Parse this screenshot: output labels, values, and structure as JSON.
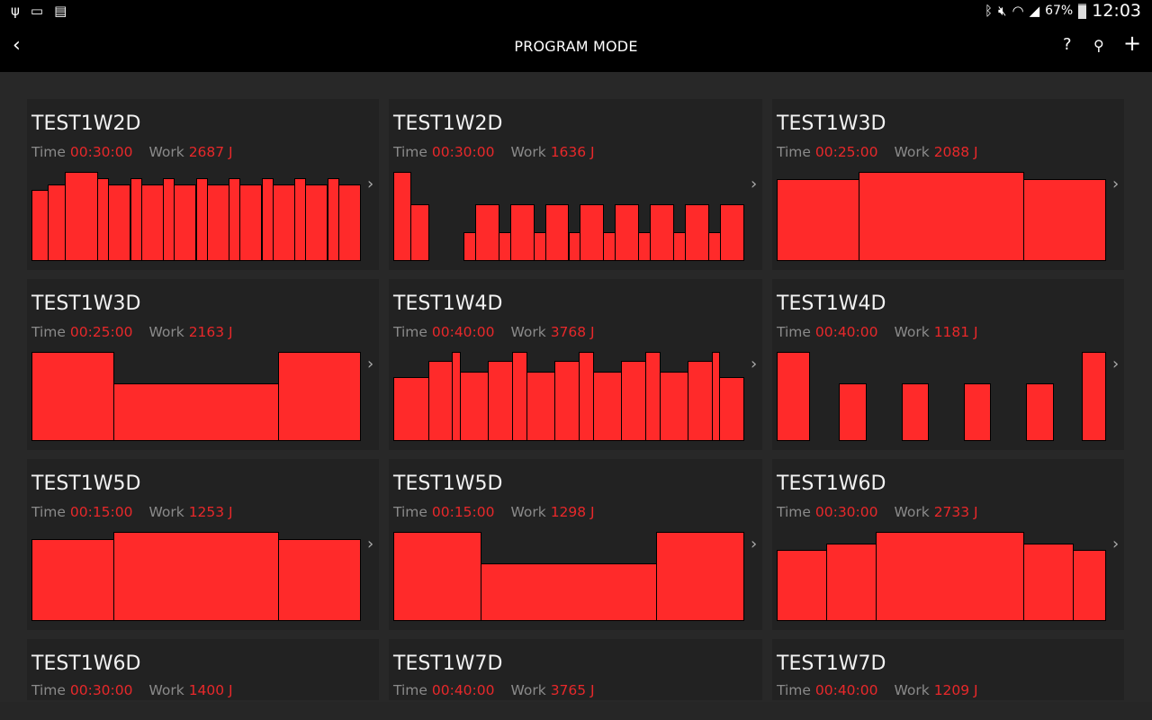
{
  "status_bar": {
    "icons_left": [
      "usb-icon",
      "screen-cast-icon",
      "sim-x-icon"
    ],
    "icons_right": [
      "bluetooth-icon",
      "mute-icon",
      "wifi-icon",
      "signal-icon"
    ],
    "battery": "67%",
    "clock": "12:03"
  },
  "toolbar": {
    "title": "PROGRAM MODE",
    "back_icon": "chevron-left-icon",
    "help": "?",
    "search_icon": "search-icon",
    "add": "+"
  },
  "labels": {
    "time": "Time",
    "work": "Work"
  },
  "accent": "#ff2a2a",
  "programs": [
    {
      "name": "TEST1W2D",
      "time": "00:30:00",
      "work": "2687 J",
      "segments": [
        [
          1.5,
          80
        ],
        [
          1.5,
          86
        ],
        [
          3,
          100
        ],
        [
          1,
          93
        ],
        [
          2,
          86
        ],
        [
          1,
          93
        ],
        [
          2,
          86
        ],
        [
          1,
          93
        ],
        [
          2,
          86
        ],
        [
          1,
          93
        ],
        [
          2,
          86
        ],
        [
          1,
          93
        ],
        [
          2,
          86
        ],
        [
          1,
          93
        ],
        [
          2,
          86
        ],
        [
          1,
          93
        ],
        [
          2,
          86
        ],
        [
          1,
          93
        ],
        [
          2,
          86
        ]
      ]
    },
    {
      "name": "TEST1W2D",
      "time": "00:30:00",
      "work": "1636 J",
      "segments": [
        [
          1.5,
          100
        ],
        [
          1.5,
          64
        ],
        [
          3,
          0
        ],
        [
          1,
          32
        ],
        [
          2,
          64
        ],
        [
          1,
          32
        ],
        [
          2,
          64
        ],
        [
          1,
          32
        ],
        [
          2,
          64
        ],
        [
          1,
          32
        ],
        [
          2,
          64
        ],
        [
          1,
          32
        ],
        [
          2,
          64
        ],
        [
          1,
          32
        ],
        [
          2,
          64
        ],
        [
          1,
          32
        ],
        [
          2,
          64
        ],
        [
          1,
          32
        ],
        [
          2,
          64
        ]
      ]
    },
    {
      "name": "TEST1W3D",
      "time": "00:25:00",
      "work": "2088 J",
      "segments": [
        [
          6.25,
          92
        ],
        [
          12.5,
          100
        ],
        [
          6.25,
          92
        ]
      ]
    },
    {
      "name": "TEST1W3D",
      "time": "00:25:00",
      "work": "2163 J",
      "segments": [
        [
          6.25,
          100
        ],
        [
          12.5,
          65
        ],
        [
          6.25,
          100
        ]
      ]
    },
    {
      "name": "TEST1W4D",
      "time": "00:40:00",
      "work": "3768 J",
      "segments": [
        [
          4,
          72
        ],
        [
          2.7,
          90
        ],
        [
          0.9,
          100
        ],
        [
          3.2,
          78
        ],
        [
          2.8,
          90
        ],
        [
          1.6,
          100
        ],
        [
          3.2,
          78
        ],
        [
          2.8,
          90
        ],
        [
          1.6,
          100
        ],
        [
          3.2,
          78
        ],
        [
          2.8,
          90
        ],
        [
          1.6,
          100
        ],
        [
          3.2,
          78
        ],
        [
          2.8,
          90
        ],
        [
          0.8,
          100
        ],
        [
          2.8,
          72
        ]
      ]
    },
    {
      "name": "TEST1W4D",
      "time": "00:40:00",
      "work": "1181 J",
      "segments": [
        [
          4,
          100
        ],
        [
          3.6,
          0
        ],
        [
          3.3,
          65
        ],
        [
          4.4,
          0
        ],
        [
          3.2,
          65
        ],
        [
          4.4,
          0
        ],
        [
          3.2,
          65
        ],
        [
          4.4,
          0
        ],
        [
          3.3,
          65
        ],
        [
          3.5,
          0
        ],
        [
          2.9,
          100
        ]
      ]
    },
    {
      "name": "TEST1W5D",
      "time": "00:15:00",
      "work": "1253 J",
      "segments": [
        [
          3.75,
          92
        ],
        [
          7.5,
          100
        ],
        [
          3.75,
          92
        ]
      ]
    },
    {
      "name": "TEST1W5D",
      "time": "00:15:00",
      "work": "1298 J",
      "segments": [
        [
          3.75,
          100
        ],
        [
          7.5,
          65
        ],
        [
          3.75,
          100
        ]
      ]
    },
    {
      "name": "TEST1W6D",
      "time": "00:30:00",
      "work": "2733 J",
      "segments": [
        [
          4.5,
          80
        ],
        [
          4.5,
          87
        ],
        [
          13.5,
          100
        ],
        [
          4.5,
          87
        ],
        [
          3,
          80
        ]
      ]
    },
    {
      "name": "TEST1W6D",
      "time": "00:30:00",
      "work": "1400 J",
      "segments": []
    },
    {
      "name": "TEST1W7D",
      "time": "00:40:00",
      "work": "3765 J",
      "segments": []
    },
    {
      "name": "TEST1W7D",
      "time": "00:40:00",
      "work": "1209 J",
      "segments": []
    }
  ]
}
